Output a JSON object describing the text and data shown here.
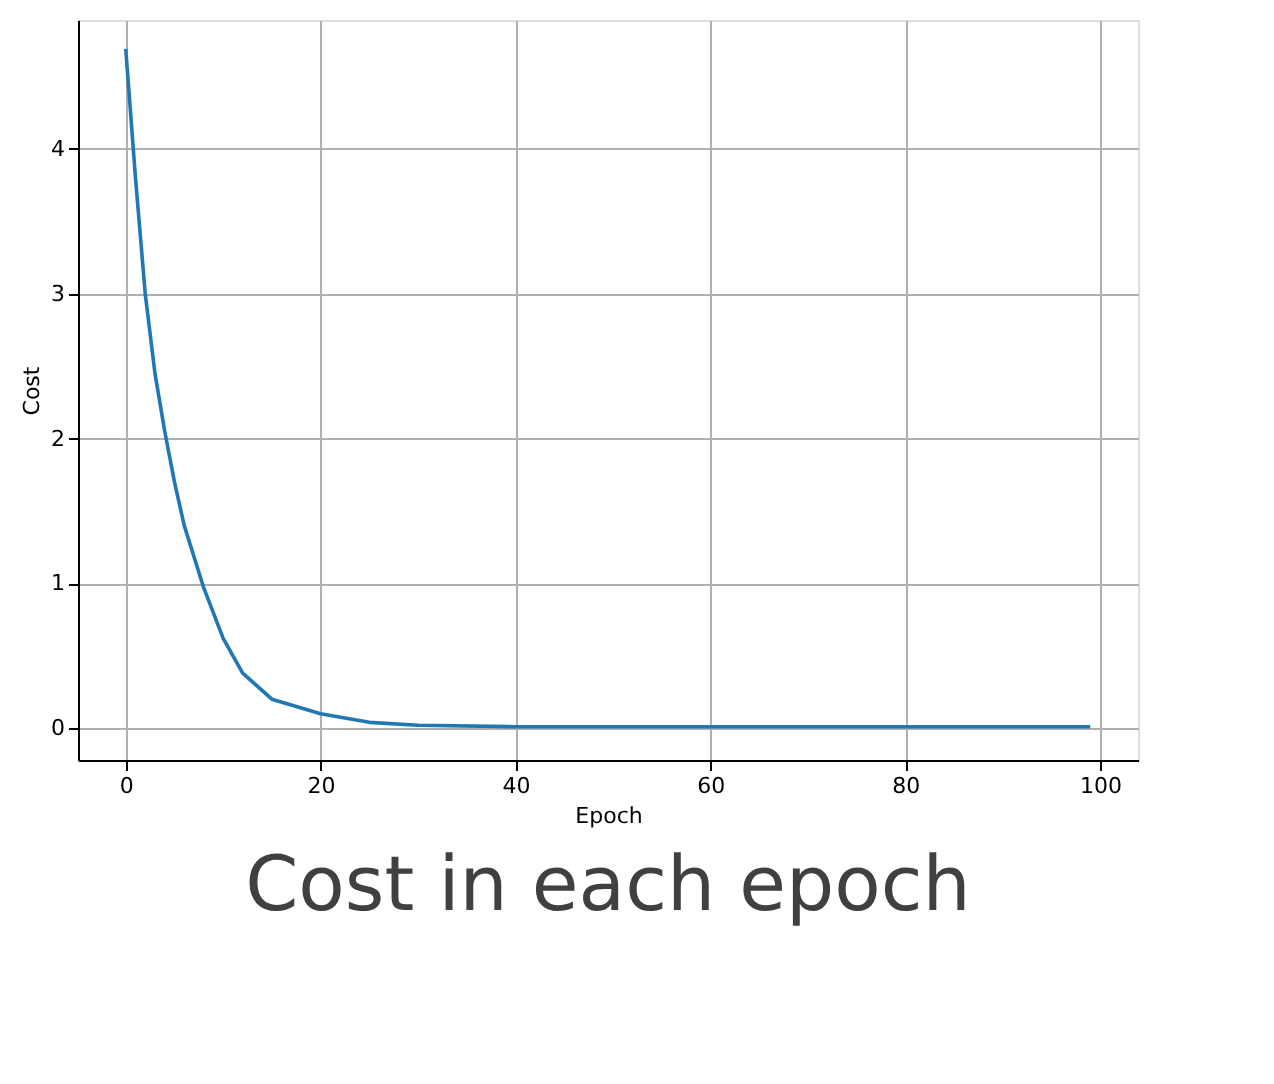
{
  "chart_data": {
    "type": "line",
    "title": "Cost in each epoch",
    "xlabel": "Epoch",
    "ylabel": "Cost",
    "x": [
      0,
      1,
      2,
      3,
      4,
      5,
      6,
      8,
      10,
      12,
      15,
      20,
      25,
      30,
      40,
      60,
      80,
      99
    ],
    "series": [
      {
        "color": "#1f77b4",
        "values": [
          4.69,
          3.8,
          3.0,
          2.45,
          2.05,
          1.7,
          1.4,
          0.97,
          0.62,
          0.38,
          0.2,
          0.1,
          0.04,
          0.02,
          0.01,
          0.01,
          0.01,
          0.01
        ]
      }
    ],
    "xlim": [
      -4.9,
      103.9
    ],
    "ylim": [
      -0.22,
      4.89
    ],
    "xticks": [
      0,
      20,
      40,
      60,
      80,
      100
    ],
    "yticks": [
      0,
      1,
      2,
      3,
      4
    ],
    "grid": true,
    "marker": "none",
    "line_style": "solid"
  }
}
